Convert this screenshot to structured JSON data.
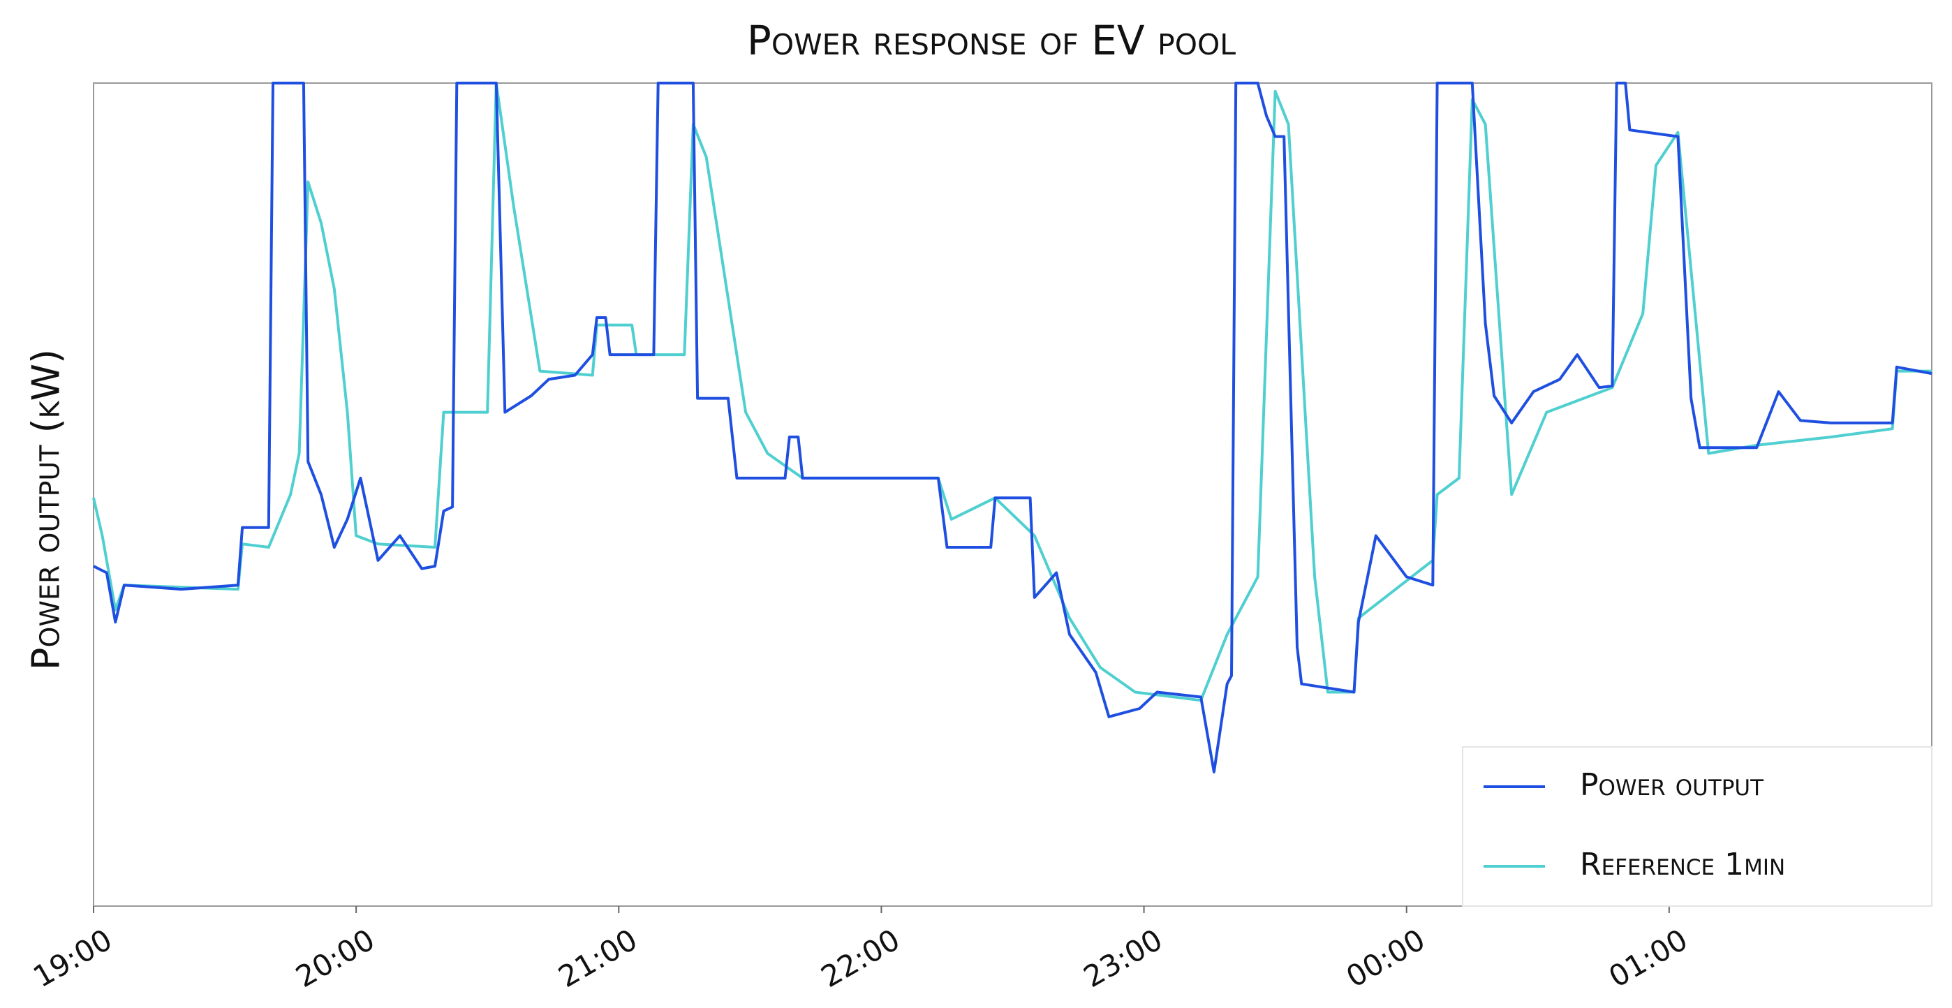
{
  "chart_data": {
    "type": "line",
    "title": "Power response of EV pool",
    "y_label": "Power output (kW)",
    "xlim": [
      "19:00",
      "02:00"
    ],
    "ylim": [
      0,
      100
    ],
    "xticks": [
      "19:00",
      "20:00",
      "21:00",
      "22:00",
      "23:00",
      "00:00",
      "01:00"
    ],
    "legend": "lower right",
    "series": [
      {
        "name": "Power output",
        "color": "#1f4fe0",
        "x": [
          "19:00",
          "19:03",
          "19:05",
          "19:07",
          "19:20",
          "19:33",
          "19:34",
          "19:40",
          "19:41",
          "19:48",
          "19:49",
          "19:52",
          "19:55",
          "19:58",
          "20:01",
          "20:05",
          "20:10",
          "20:15",
          "20:18",
          "20:20",
          "20:22",
          "20:23",
          "20:32",
          "20:34",
          "20:40",
          "20:44",
          "20:50",
          "20:54",
          "20:55",
          "20:57",
          "20:58",
          "21:08",
          "21:09",
          "21:17",
          "21:18",
          "21:25",
          "21:27",
          "21:38",
          "21:39",
          "21:41",
          "21:42",
          "22:13",
          "22:15",
          "22:25",
          "22:26",
          "22:34",
          "22:35",
          "22:40",
          "22:43",
          "22:49",
          "22:52",
          "22:59",
          "23:03",
          "23:13",
          "23:16",
          "23:19",
          "23:20",
          "23:21",
          "23:26",
          "23:28",
          "23:30",
          "23:32",
          "23:35",
          "23:36",
          "23:48",
          "23:49",
          "23:53",
          "00:00",
          "00:06",
          "00:07",
          "00:15",
          "00:18",
          "00:20",
          "00:24",
          "00:29",
          "00:35",
          "00:39",
          "00:44",
          "00:47",
          "00:48",
          "00:50",
          "00:51",
          "01:02",
          "01:05",
          "01:07",
          "01:20",
          "01:25",
          "01:30",
          "01:37",
          "01:51",
          "01:52",
          "02:00"
        ],
        "values": [
          41.3,
          40.5,
          34.5,
          39,
          38.5,
          39,
          46,
          46,
          100,
          100,
          54,
          50,
          43.6,
          47,
          52,
          42,
          45,
          41,
          41.3,
          48,
          48.5,
          100,
          100,
          60,
          62,
          64,
          64.5,
          67,
          71.5,
          71.5,
          67,
          67,
          100,
          100,
          61.7,
          61.7,
          52,
          52,
          57,
          57,
          52,
          52,
          43.6,
          43.6,
          49.6,
          49.6,
          37.5,
          40.5,
          33,
          28.4,
          23,
          24,
          26,
          25.4,
          16.3,
          27,
          28,
          100,
          100,
          96,
          93.5,
          93.5,
          31.5,
          27,
          26,
          34.5,
          45,
          40,
          39,
          100,
          100,
          70.8,
          62,
          58.7,
          62.5,
          64,
          67,
          63,
          63.2,
          100,
          100,
          94.3,
          93.5,
          61.7,
          55.7,
          55.7,
          62.5,
          59,
          58.7,
          58.7,
          65.5,
          64.7
        ]
      },
      {
        "name": "Reference 1min",
        "color": "#4fcfd0",
        "x": [
          "19:00",
          "19:02",
          "19:05",
          "19:07",
          "19:33",
          "19:34",
          "19:40",
          "19:45",
          "19:47",
          "19:49",
          "19:52",
          "19:55",
          "19:58",
          "20:00",
          "20:05",
          "20:18",
          "20:20",
          "20:30",
          "20:32",
          "20:36",
          "20:42",
          "20:54",
          "20:55",
          "21:03",
          "21:04",
          "21:15",
          "21:17",
          "21:20",
          "21:29",
          "21:34",
          "21:42",
          "22:13",
          "22:16",
          "22:26",
          "22:35",
          "22:43",
          "22:50",
          "22:58",
          "23:13",
          "23:19",
          "23:26",
          "23:30",
          "23:33",
          "23:39",
          "23:42",
          "23:48",
          "23:49",
          "00:06",
          "00:07",
          "00:12",
          "00:15",
          "00:18",
          "00:24",
          "00:32",
          "00:47",
          "00:54",
          "00:57",
          "01:02",
          "01:09",
          "01:20",
          "01:37",
          "01:51",
          "01:52",
          "02:00"
        ],
        "values": [
          49.6,
          45,
          36,
          39,
          38.5,
          44,
          43.6,
          50,
          55,
          88,
          83,
          75,
          60,
          45,
          44,
          43.6,
          60,
          60,
          100,
          85,
          65,
          64.5,
          70.6,
          70.6,
          67,
          67,
          95,
          91,
          60,
          55,
          52,
          52,
          47,
          49.6,
          45,
          35,
          29,
          26,
          25,
          33,
          40,
          99,
          95,
          40,
          26,
          26,
          35,
          42,
          50,
          52,
          98,
          95,
          50,
          60,
          63,
          72,
          90,
          94,
          55,
          56,
          57,
          58,
          65,
          65
        ]
      }
    ]
  }
}
